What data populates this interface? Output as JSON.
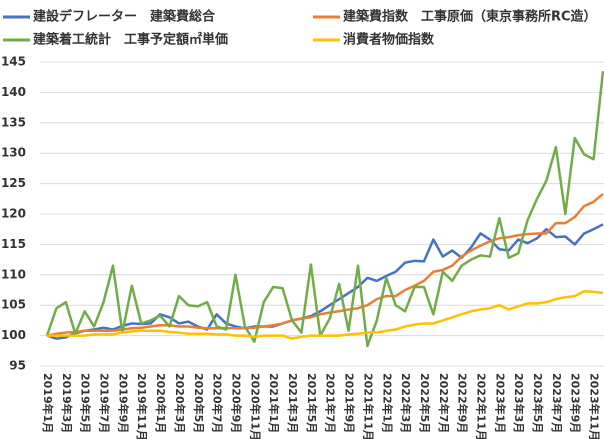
{
  "chart_data": {
    "type": "line",
    "categories": [
      "2019年1月",
      null,
      "2019年3月",
      null,
      "2019年5月",
      null,
      "2019年7月",
      null,
      "2019年9月",
      null,
      "2019年11月",
      null,
      "2020年1月",
      null,
      "2020年3月",
      null,
      "2020年5月",
      null,
      "2020年7月",
      null,
      "2020年9月",
      null,
      "2020年11月",
      null,
      "2021年1月",
      null,
      "2021年3月",
      null,
      "2021年5月",
      null,
      "2021年7月",
      null,
      "2021年9月",
      null,
      "2021年11月",
      null,
      "2022年1月",
      null,
      "2022年3月",
      null,
      "2022年5月",
      null,
      "2022年7月",
      null,
      "2022年9月",
      null,
      "2022年11月",
      null,
      "2023年1月",
      null,
      "2023年3月",
      null,
      "2023年5月",
      null,
      "2023年7月",
      null,
      "2023年9月",
      null,
      "2023年11月",
      null
    ],
    "series": [
      {
        "name": "建設デフレーター　建築費総合",
        "color": "#4472c4",
        "values": [
          100,
          99.5,
          99.7,
          100.4,
          100.8,
          101.0,
          101.3,
          101.0,
          101.6,
          102.0,
          101.9,
          102.0,
          103.5,
          103.0,
          102.0,
          102.3,
          101.5,
          101.0,
          103.5,
          102.0,
          101.5,
          101.2,
          101.5,
          101.5,
          101.5,
          102.0,
          102.5,
          102.8,
          103.2,
          104.0,
          105.0,
          106.0,
          107.0,
          108.0,
          109.5,
          109.0,
          109.8,
          110.5,
          112.0,
          112.3,
          112.2,
          115.8,
          113.0,
          114.0,
          112.8,
          114.5,
          116.8,
          115.8,
          114.2,
          114.0,
          115.8,
          115.2,
          116.0,
          117.5,
          116.2,
          116.3,
          115.0,
          116.8,
          117.5,
          118.3
        ]
      },
      {
        "name": "建築費指数　工事原価（東京事務所RC造）",
        "color": "#ed7d31",
        "values": [
          100,
          100.3,
          100.5,
          100.6,
          100.8,
          100.8,
          100.8,
          100.8,
          101.0,
          101.2,
          101.3,
          101.5,
          101.7,
          101.7,
          101.5,
          101.5,
          101.3,
          101.2,
          101.2,
          101.2,
          101.2,
          101.2,
          101.3,
          101.5,
          101.7,
          102.0,
          102.5,
          102.8,
          103.0,
          103.5,
          103.8,
          104.0,
          104.3,
          104.5,
          105.0,
          106.0,
          106.5,
          106.5,
          107.5,
          108.2,
          109.0,
          110.5,
          110.8,
          111.5,
          113.0,
          114.0,
          114.8,
          115.5,
          116.0,
          116.2,
          116.5,
          116.7,
          116.8,
          116.8,
          118.5,
          118.5,
          119.5,
          121.3,
          122.0,
          123.3
        ]
      },
      {
        "name": "建築着工統計　工事予定額㎡単価",
        "color": "#70ad47",
        "values": [
          100,
          104.5,
          105.5,
          100.3,
          104.0,
          101.5,
          105.5,
          111.5,
          100.5,
          108.2,
          102.0,
          102.5,
          103.3,
          101.5,
          106.5,
          105.0,
          104.8,
          105.5,
          101.5,
          101.0,
          110.0,
          101.5,
          99.0,
          105.5,
          108.0,
          107.8,
          102.5,
          100.5,
          111.7,
          100.0,
          102.8,
          108.5,
          100.8,
          111.5,
          98.3,
          102.5,
          109.5,
          105.0,
          104.0,
          108.0,
          108.0,
          103.5,
          110.5,
          109.0,
          111.5,
          112.5,
          113.2,
          113.0,
          119.3,
          112.8,
          113.5,
          119.0,
          122.5,
          125.5,
          131.0,
          120.0,
          132.5,
          129.8,
          129.0,
          143.5
        ]
      },
      {
        "name": "消費者物価指数",
        "color": "#ffc000",
        "values": [
          100,
          100.0,
          100.0,
          100.0,
          100.0,
          100.2,
          100.2,
          100.2,
          100.5,
          100.7,
          100.8,
          100.8,
          100.8,
          100.6,
          100.5,
          100.3,
          100.3,
          100.3,
          100.2,
          100.2,
          100.0,
          100.0,
          99.8,
          100.0,
          100.0,
          100.0,
          99.5,
          99.8,
          100.0,
          100.0,
          100.0,
          100.0,
          100.2,
          100.3,
          100.5,
          100.5,
          100.8,
          101.0,
          101.5,
          101.8,
          102.0,
          102.0,
          102.5,
          103.0,
          103.5,
          104.0,
          104.3,
          104.5,
          105.0,
          104.3,
          104.8,
          105.3,
          105.3,
          105.5,
          106.0,
          106.3,
          106.5,
          107.3,
          107.2,
          107.0
        ]
      }
    ],
    "ylim": [
      95,
      145
    ],
    "yticks": [
      95,
      100,
      105,
      110,
      115,
      120,
      125,
      130,
      135,
      140,
      145
    ],
    "grid": true,
    "legend": "top"
  }
}
